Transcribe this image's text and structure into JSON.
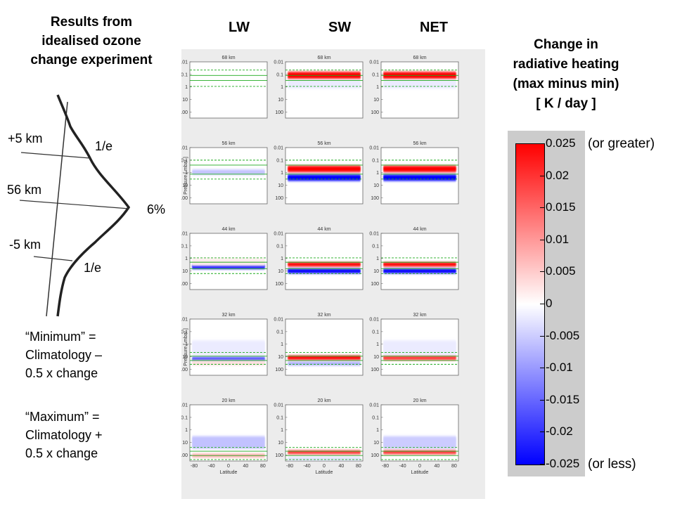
{
  "left_title": [
    "Results from",
    "idealised ozone",
    "change experiment"
  ],
  "profile": {
    "labels": {
      "plus5": "+5 km",
      "center": "56 km",
      "minus5": "-5 km",
      "e_upper": "1/e",
      "peak": "6%",
      "e_lower": "1/e"
    }
  },
  "notes": {
    "minimum": [
      "“Minimum” =",
      "Climatology –",
      "0.5 x change"
    ],
    "maximum": [
      "“Maximum” =",
      "Climatology +",
      "0.5 x change"
    ]
  },
  "right_title": [
    "Change in",
    "radiative heating",
    "(max minus min)",
    "[ K / day ]"
  ],
  "colorbar": {
    "ticks": [
      "0.025",
      "0.02",
      "0.015",
      "0.01",
      "0.005",
      "0",
      "-0.005",
      "-0.01",
      "-0.015",
      "-0.02",
      "-0.025"
    ],
    "top_note": "(or greater)",
    "bottom_note": "(or less)",
    "colors": {
      "max": "#ff0000",
      "zero": "#ffffff",
      "min": "#0000ff"
    }
  },
  "chart_data": {
    "type": "heatmap",
    "columns": [
      "LW",
      "SW",
      "NET"
    ],
    "rows": [
      "68 km",
      "56 km",
      "44 km",
      "32 km",
      "20 km"
    ],
    "ylabel": "Pressure [ mbar ]",
    "xlabel": "Latitude",
    "yticks": [
      "0.01",
      "0.1",
      "1",
      "10",
      "100"
    ],
    "xticks": [
      "-80",
      "-40",
      "0",
      "40",
      "80"
    ],
    "ylim": [
      0.01,
      300
    ],
    "xlim": [
      -90,
      90
    ],
    "yscale": "log",
    "clim": [
      -0.025,
      0.025
    ],
    "panels": [
      [
        {
          "layers": []
        },
        {
          "layers": [
            {
              "p": 0.12,
              "w": 0.28,
              "v": 0.025
            },
            {
              "p": 0.6,
              "w": 0.35,
              "v": -0.002
            }
          ]
        },
        {
          "layers": [
            {
              "p": 0.12,
              "w": 0.28,
              "v": 0.025
            },
            {
              "p": 0.6,
              "w": 0.35,
              "v": -0.002
            }
          ]
        }
      ],
      [
        {
          "layers": [
            {
              "p": 0.9,
              "w": 0.2,
              "v": -0.006
            }
          ]
        },
        {
          "layers": [
            {
              "p": 0.5,
              "w": 0.25,
              "v": 0.025
            },
            {
              "p": 2.5,
              "w": 0.25,
              "v": -0.025
            }
          ]
        },
        {
          "layers": [
            {
              "p": 0.5,
              "w": 0.25,
              "v": 0.025
            },
            {
              "p": 2.5,
              "w": 0.25,
              "v": -0.025
            }
          ]
        }
      ],
      [
        {
          "layers": [
            {
              "p": 4.5,
              "w": 0.18,
              "v": -0.025
            },
            {
              "p": 2.0,
              "w": 0.3,
              "v": 0.002
            }
          ]
        },
        {
          "layers": [
            {
              "p": 3.0,
              "w": 0.17,
              "v": 0.025
            },
            {
              "p": 10,
              "w": 0.18,
              "v": -0.025
            }
          ]
        },
        {
          "layers": [
            {
              "p": 3.0,
              "w": 0.17,
              "v": 0.025
            },
            {
              "p": 10,
              "w": 0.18,
              "v": -0.025
            }
          ]
        }
      ],
      [
        {
          "layers": [
            {
              "p": 15,
              "w": 0.17,
              "v": -0.018
            },
            {
              "p": 30,
              "w": 0.2,
              "v": 0.003
            },
            {
              "p": 2,
              "w": 0.6,
              "v": -0.002
            }
          ]
        },
        {
          "layers": [
            {
              "p": 12,
              "w": 0.17,
              "v": 0.025
            },
            {
              "p": 35,
              "w": 0.15,
              "v": -0.008
            }
          ]
        },
        {
          "layers": [
            {
              "p": 12,
              "w": 0.18,
              "v": 0.02
            },
            {
              "p": 2,
              "w": 0.6,
              "v": -0.002
            }
          ]
        }
      ],
      [
        {
          "layers": [
            {
              "p": 10,
              "w": 0.5,
              "v": -0.006
            },
            {
              "p": 110,
              "w": 0.15,
              "v": 0.008
            }
          ]
        },
        {
          "layers": [
            {
              "p": 60,
              "w": 0.15,
              "v": 0.02
            },
            {
              "p": 200,
              "w": 0.15,
              "v": -0.003
            }
          ]
        },
        {
          "layers": [
            {
              "p": 10,
              "w": 0.5,
              "v": -0.005
            },
            {
              "p": 60,
              "w": 0.15,
              "v": 0.02
            }
          ]
        }
      ]
    ],
    "band_lines": [
      {
        "solid": [
          0.12,
          0.3
        ],
        "dashed": [
          0.045,
          0.9
        ]
      },
      {
        "solid": [
          0.25,
          1.3
        ],
        "dashed": [
          0.1,
          3.2
        ]
      },
      {
        "solid": [
          2.0,
          6.5
        ],
        "dashed": [
          0.9,
          16
        ]
      },
      {
        "solid": [
          9,
          20
        ],
        "dashed": [
          4.5,
          40
        ]
      },
      {
        "solid": [
          50,
          110
        ],
        "dashed": [
          25,
          230
        ]
      }
    ]
  }
}
